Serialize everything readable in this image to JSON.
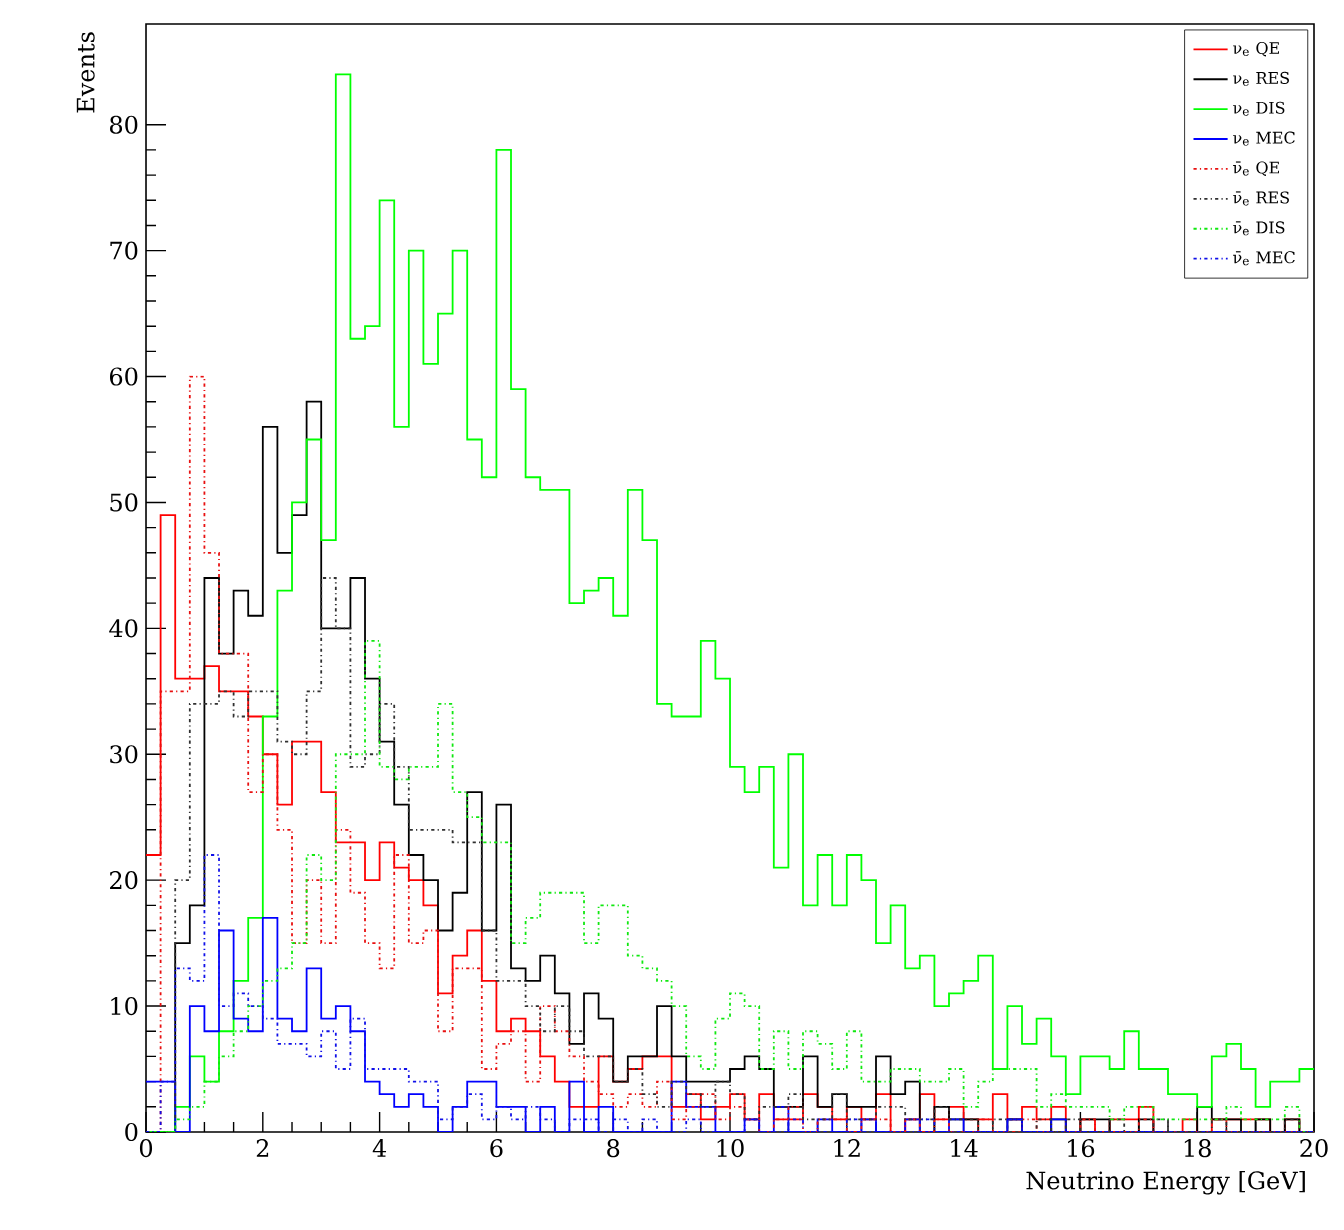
{
  "chart_data": {
    "type": "histogram",
    "xlabel": "Neutrino Energy [GeV]",
    "ylabel": "Events",
    "xlim": [
      0,
      20
    ],
    "ylim": [
      0,
      88
    ],
    "xticks": [
      0,
      2,
      4,
      6,
      8,
      10,
      12,
      14,
      16,
      18,
      20
    ],
    "yticks": [
      0,
      10,
      20,
      30,
      40,
      50,
      60,
      70,
      80
    ],
    "legend": "top right",
    "bins": [
      0,
      0.25,
      0.5,
      0.75,
      1,
      1.25,
      1.5,
      1.75,
      2,
      2.25,
      2.5,
      2.75,
      3,
      3.25,
      3.5,
      3.75,
      4,
      4.25,
      4.5,
      4.75,
      5,
      5.25,
      5.5,
      5.75,
      6,
      6.25,
      6.5,
      6.75,
      7,
      7.25,
      7.5,
      7.75,
      8,
      8.25,
      8.5,
      8.75,
      9,
      9.25,
      9.5,
      9.75,
      10,
      10.25,
      10.5,
      10.75,
      11,
      11.25,
      11.5,
      11.75,
      12,
      12.25,
      12.5,
      12.75,
      13,
      13.25,
      13.5,
      13.75,
      14,
      14.25,
      14.5,
      14.75,
      15,
      15.25,
      15.5,
      15.75,
      16,
      16.25,
      16.5,
      16.75,
      17,
      17.25,
      17.5,
      17.75,
      18,
      18.25,
      18.5,
      18.75,
      19,
      19.25,
      19.5,
      19.75,
      20
    ],
    "series": [
      {
        "name": "ν$_{e}$ QE",
        "color": "#ff0000",
        "line_style": "solid",
        "values": [
          22,
          49,
          36,
          36,
          37,
          35,
          35,
          33,
          30,
          26,
          31,
          31,
          27,
          23,
          23,
          20,
          23,
          21,
          20,
          18,
          11,
          14,
          16,
          12,
          8,
          9,
          8,
          6,
          4,
          2,
          2,
          6,
          4,
          5,
          6,
          6,
          2,
          3,
          1,
          2,
          3,
          1,
          3,
          1,
          1,
          3,
          2,
          1,
          2,
          1,
          3,
          0,
          1,
          3,
          1,
          2,
          1,
          1,
          3,
          1,
          2,
          1,
          2,
          0,
          1,
          0,
          1,
          1,
          2,
          0,
          0,
          1,
          0,
          1,
          1,
          1,
          1,
          0,
          1,
          0
        ]
      },
      {
        "name": "ν$_{e}$ RES",
        "color": "#000000",
        "line_style": "solid",
        "values": [
          0,
          0,
          15,
          18,
          44,
          38,
          43,
          41,
          56,
          46,
          49,
          58,
          40,
          40,
          44,
          36,
          31,
          26,
          22,
          20,
          16,
          19,
          27,
          16,
          26,
          13,
          12,
          14,
          11,
          7,
          11,
          9,
          4,
          6,
          6,
          10,
          6,
          4,
          4,
          4,
          5,
          6,
          5,
          2,
          2,
          6,
          2,
          3,
          2,
          2,
          6,
          3,
          4,
          0,
          2,
          1,
          1,
          0,
          0,
          1,
          0,
          0,
          1,
          0,
          1,
          1,
          0,
          0,
          1,
          0,
          0,
          0,
          2,
          1,
          1,
          0,
          1,
          0,
          1,
          0
        ]
      },
      {
        "name": "ν$_{e}$ DIS",
        "color": "#00ff00",
        "line_style": "solid",
        "values": [
          0,
          0,
          2,
          6,
          4,
          8,
          12,
          17,
          33,
          43,
          50,
          55,
          47,
          84,
          63,
          64,
          74,
          56,
          70,
          61,
          65,
          70,
          55,
          52,
          78,
          59,
          52,
          51,
          51,
          42,
          43,
          44,
          41,
          51,
          47,
          34,
          33,
          33,
          39,
          36,
          29,
          27,
          29,
          21,
          30,
          18,
          22,
          18,
          22,
          20,
          15,
          18,
          13,
          14,
          10,
          11,
          12,
          14,
          5,
          10,
          7,
          9,
          6,
          3,
          6,
          6,
          5,
          8,
          5,
          5,
          3,
          3,
          2,
          6,
          7,
          5,
          2,
          4,
          4,
          5
        ]
      },
      {
        "name": "ν$_{e}$ MEC",
        "color": "#0000ff",
        "line_style": "solid",
        "values": [
          4,
          4,
          0,
          10,
          8,
          16,
          9,
          8,
          17,
          9,
          8,
          13,
          9,
          10,
          8,
          4,
          3,
          2,
          3,
          2,
          0,
          2,
          4,
          4,
          2,
          2,
          0,
          2,
          0,
          4,
          0,
          2,
          0,
          0,
          0,
          0,
          4,
          2,
          2,
          0,
          0,
          1,
          0,
          2,
          0,
          0,
          1,
          0,
          0,
          1,
          0,
          0,
          1,
          0,
          0,
          1,
          0,
          0,
          0,
          1,
          0,
          0,
          1,
          0,
          0,
          0,
          0,
          0,
          0,
          0,
          0,
          0,
          0,
          0,
          0,
          0,
          0,
          0,
          0,
          0
        ]
      },
      {
        "name": "ν̄$_{e}$ QE",
        "color": "#e81010",
        "line_style": "dotted",
        "values": [
          0,
          35,
          35,
          60,
          46,
          38,
          38,
          27,
          30,
          24,
          15,
          20,
          15,
          24,
          19,
          15,
          13,
          22,
          15,
          16,
          8,
          13,
          13,
          5,
          7,
          8,
          4,
          10,
          8,
          6,
          4,
          3,
          2,
          3,
          2,
          4,
          1,
          2,
          3,
          1,
          2,
          1,
          0,
          1,
          2,
          0,
          1,
          1,
          0,
          1,
          1,
          0,
          1,
          0,
          1,
          0,
          0,
          1,
          0,
          0,
          1,
          0,
          0,
          0,
          1,
          0,
          0,
          0,
          1,
          0,
          0,
          0,
          0,
          1,
          0,
          0,
          0,
          0,
          0,
          0
        ]
      },
      {
        "name": "ν̄$_{e}$ RES",
        "color": "#303030",
        "line_style": "dotted",
        "values": [
          0,
          0,
          20,
          34,
          34,
          35,
          33,
          35,
          35,
          31,
          30,
          35,
          44,
          40,
          29,
          30,
          34,
          29,
          24,
          24,
          24,
          23,
          23,
          16,
          12,
          12,
          10,
          8,
          10,
          8,
          6,
          6,
          4,
          5,
          3,
          2,
          4,
          3,
          2,
          4,
          3,
          1,
          2,
          2,
          3,
          1,
          1,
          3,
          1,
          1,
          2,
          2,
          1,
          1,
          2,
          1,
          1,
          0,
          1,
          1,
          0,
          1,
          0,
          1,
          0,
          0,
          1,
          0,
          0,
          1,
          0,
          0,
          0,
          1,
          0,
          0,
          0,
          0,
          1,
          0
        ]
      },
      {
        "name": "ν̄$_{e}$ DIS",
        "color": "#10e810",
        "line_style": "dotted",
        "values": [
          0,
          0,
          1,
          2,
          4,
          6,
          8,
          10,
          12,
          13,
          15,
          22,
          20,
          30,
          30,
          39,
          29,
          28,
          29,
          29,
          34,
          27,
          25,
          23,
          23,
          15,
          17,
          19,
          19,
          19,
          15,
          18,
          18,
          14,
          13,
          12,
          10,
          6,
          5,
          9,
          11,
          10,
          5,
          8,
          5,
          8,
          7,
          5,
          8,
          4,
          4,
          5,
          5,
          4,
          4,
          5,
          2,
          4,
          5,
          5,
          5,
          2,
          3,
          2,
          2,
          2,
          1,
          2,
          2,
          1,
          1,
          1,
          1,
          1,
          2,
          1,
          1,
          1,
          2,
          0
        ]
      },
      {
        "name": "ν̄$_{e}$ MEC",
        "color": "#1010e8",
        "line_style": "dotted",
        "values": [
          0,
          4,
          13,
          12,
          22,
          10,
          11,
          10,
          9,
          7,
          7,
          6,
          8,
          5,
          9,
          5,
          5,
          5,
          4,
          4,
          1,
          2,
          3,
          1,
          2,
          1,
          2,
          1,
          0,
          1,
          1,
          0,
          1,
          0,
          1,
          0,
          0,
          1,
          0,
          0,
          0,
          1,
          0,
          0,
          1,
          0,
          0,
          0,
          1,
          0,
          0,
          0,
          0,
          1,
          0,
          0,
          0,
          0,
          0,
          1,
          0,
          0,
          0,
          0,
          0,
          0,
          0,
          0,
          0,
          0,
          0,
          0,
          0,
          0,
          0,
          0,
          0,
          0,
          0,
          0
        ]
      }
    ]
  }
}
